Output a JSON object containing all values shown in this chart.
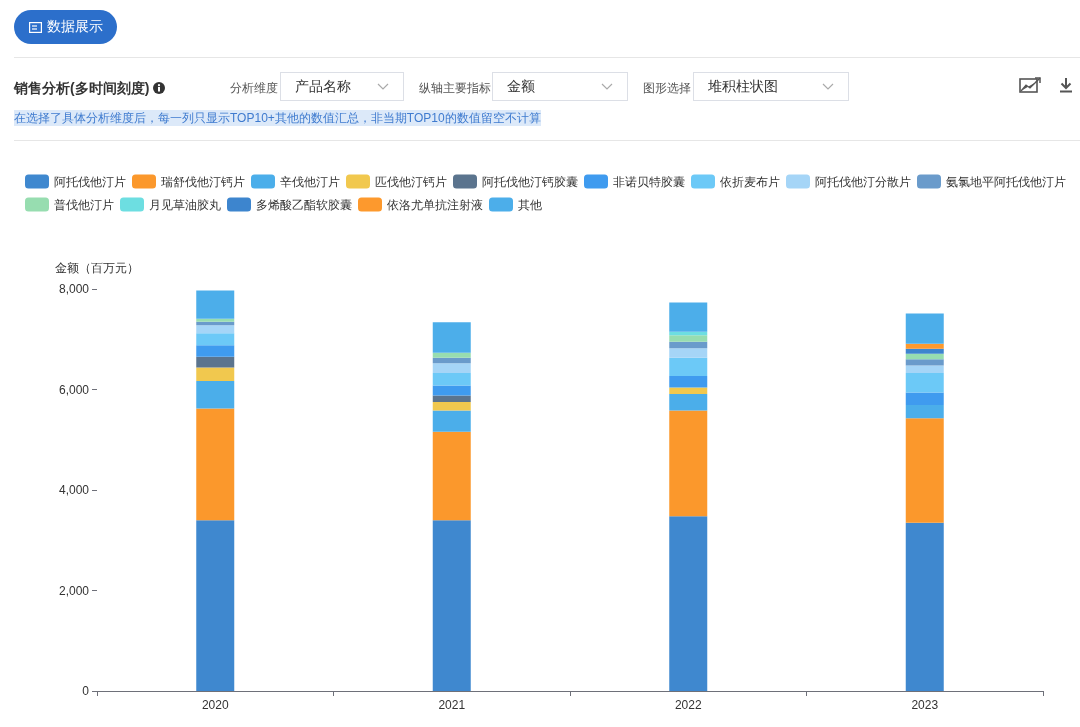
{
  "chart_data": {
    "type": "bar",
    "stacked": true,
    "title": "销售分析(多时间刻度)",
    "ylabel": "金额（百万元）",
    "annotations": [
      "数据展示",
      "分析维度",
      "产品名称",
      "纵轴主要指标",
      "金额",
      "图形选择",
      "堆积柱状图",
      "在选择了具体分析维度后，每一列只显示TOP10+其他的数值汇总，非当期TOP10的数值留空不计算"
    ],
    "categories": [
      "2020",
      "2021",
      "2022",
      "2023"
    ],
    "ylim": [
      0,
      8000
    ],
    "yticks": [
      0,
      {
        "value": 2000,
        "label": "2,000"
      },
      {
        "value": 4000,
        "label": "4,000"
      },
      {
        "value": 6000,
        "label": "6,000"
      },
      {
        "value": 8000,
        "label": "8,000"
      }
    ],
    "grid": false,
    "legend": "top",
    "series": [
      {
        "name": "阿托伐他汀片",
        "color": "#3f88cf",
        "values": [
          3400,
          3400,
          3480,
          3350
        ]
      },
      {
        "name": "瑞舒伐他汀钙片",
        "color": "#fb982c",
        "values": [
          2220,
          1760,
          2100,
          2080
        ]
      },
      {
        "name": "辛伐他汀片",
        "color": "#4baeea",
        "values": [
          550,
          420,
          330,
          260
        ]
      },
      {
        "name": "匹伐他汀钙片",
        "color": "#f1c84e",
        "values": [
          270,
          170,
          130,
          null
        ]
      },
      {
        "name": "阿托伐他汀钙胶囊",
        "color": "#5b748e",
        "values": [
          210,
          130,
          null,
          null
        ]
      },
      {
        "name": "非诺贝特胶囊",
        "color": "#3f9bef",
        "values": [
          230,
          200,
          230,
          250
        ]
      },
      {
        "name": "依折麦布片",
        "color": "#6cc9f7",
        "values": [
          240,
          250,
          360,
          390
        ]
      },
      {
        "name": "阿托伐他汀分散片",
        "color": "#a5d5f7",
        "values": [
          160,
          190,
          190,
          150
        ]
      },
      {
        "name": "氨氯地平阿托伐他汀片",
        "color": "#6a9bcb",
        "values": [
          70,
          110,
          130,
          120
        ]
      },
      {
        "name": "普伐他汀片",
        "color": "#97ddb0",
        "values": [
          60,
          100,
          130,
          110
        ]
      },
      {
        "name": "月见草油胶丸",
        "color": "#6ddee1",
        "values": [
          null,
          null,
          70,
          null
        ]
      },
      {
        "name": "多烯酸乙酯软胶囊",
        "color": "#3d85ce",
        "values": [
          null,
          null,
          null,
          100
        ]
      },
      {
        "name": "依洛尤单抗注射液",
        "color": "#fd992d",
        "values": [
          null,
          null,
          null,
          100
        ]
      },
      {
        "name": "其他",
        "color": "#4caeea",
        "values": [
          560,
          610,
          580,
          600
        ]
      }
    ]
  }
}
